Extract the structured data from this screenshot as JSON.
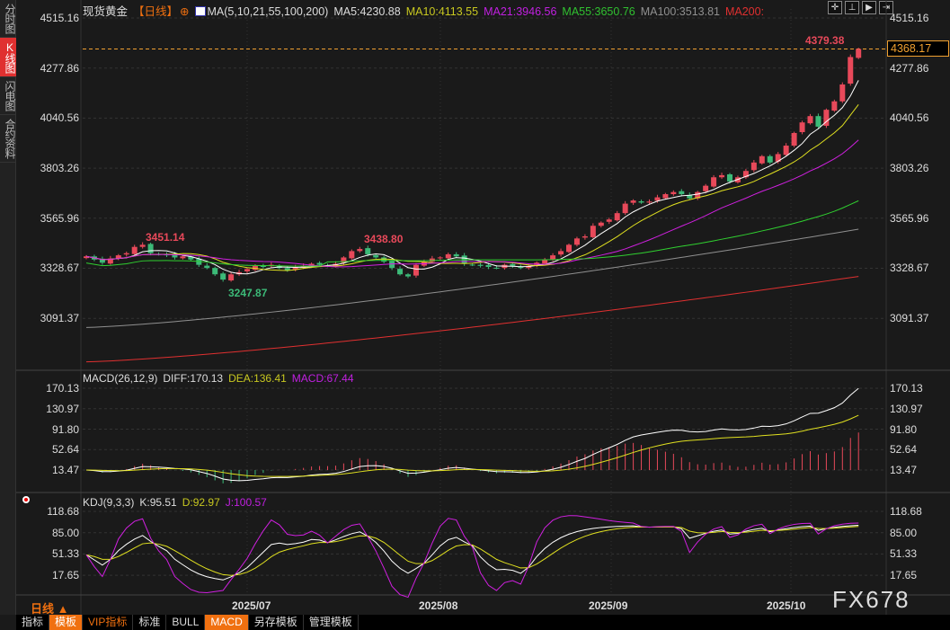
{
  "sidebar": {
    "tabs": [
      "分时图",
      "K线图",
      "闪电图",
      "合约资料"
    ],
    "active": 1
  },
  "header": {
    "symbol": "现货黄金",
    "period": "【日线】",
    "ma_label": "MA(5,10,21,55,100,200)",
    "ma5": "MA5:4230.88",
    "ma10": "MA10:4113.55",
    "ma21": "MA21:3946.56",
    "ma55": "MA55:3650.76",
    "ma100": "MA100:3513.81",
    "ma200": "MA200:"
  },
  "colors": {
    "up": "#e8495a",
    "down": "#3cba78",
    "ma5": "#ffffff",
    "ma10": "#e0e020",
    "ma21": "#d020e0",
    "ma55": "#30d030",
    "ma100": "#909090",
    "ma200": "#e03030",
    "dash": "#f0a030"
  },
  "toolbar": {
    "icons": [
      "crosshair-icon",
      "zoom-in-icon",
      "play-icon",
      "exit-icon"
    ]
  },
  "price_axis": [
    "4515.16",
    "4277.86",
    "4040.56",
    "3803.26",
    "3565.96",
    "3328.67",
    "3091.37"
  ],
  "current_price": "4368.17",
  "annotations": {
    "high": "4379.38",
    "peak1": "3451.14",
    "low1": "3247.87",
    "peak2": "3438.80"
  },
  "macd": {
    "label": "MACD(26,12,9)",
    "diff": "DIFF:170.13",
    "dea": "DEA:136.41",
    "macd": "MACD:67.44",
    "axis": [
      "170.13",
      "130.97",
      "91.80",
      "52.64",
      "13.47"
    ]
  },
  "kdj": {
    "label": "KDJ(9,3,3)",
    "k": "K:95.51",
    "d": "D:92.97",
    "j": "J:100.57",
    "axis": [
      "118.68",
      "85.00",
      "51.33",
      "17.65"
    ]
  },
  "dates": [
    "2025/07",
    "2025/08",
    "2025/09",
    "2025/10"
  ],
  "period_label": "日线 ▲",
  "bottom_tabs": [
    "指标",
    "模板",
    "VIP指标",
    "标准",
    "BULL",
    "MACD",
    "另存模板",
    "管理模板"
  ],
  "watermark": "FX678",
  "chart_data": {
    "type": "candlestick",
    "ylim": [
      2880,
      4515.16
    ],
    "closes": [
      3385,
      3370,
      3355,
      3375,
      3390,
      3400,
      3430,
      3440,
      3400,
      3395,
      3390,
      3380,
      3385,
      3370,
      3345,
      3330,
      3300,
      3275,
      3300,
      3310,
      3325,
      3340,
      3335,
      3345,
      3330,
      3320,
      3335,
      3340,
      3350,
      3345,
      3340,
      3350,
      3380,
      3410,
      3420,
      3395,
      3380,
      3360,
      3330,
      3300,
      3290,
      3345,
      3360,
      3375,
      3380,
      3395,
      3385,
      3350,
      3345,
      3340,
      3335,
      3330,
      3345,
      3340,
      3330,
      3340,
      3355,
      3370,
      3390,
      3410,
      3440,
      3470,
      3480,
      3530,
      3545,
      3560,
      3590,
      3635,
      3650,
      3640,
      3645,
      3665,
      3680,
      3690,
      3680,
      3660,
      3690,
      3720,
      3760,
      3770,
      3740,
      3760,
      3790,
      3830,
      3860,
      3830,
      3870,
      3910,
      3970,
      4020,
      4050,
      4000,
      4080,
      4120,
      4200,
      4330,
      4368.17
    ],
    "ma100": [
      3048,
      3513.81
    ],
    "ma200": [
      2885,
      3290
    ]
  }
}
